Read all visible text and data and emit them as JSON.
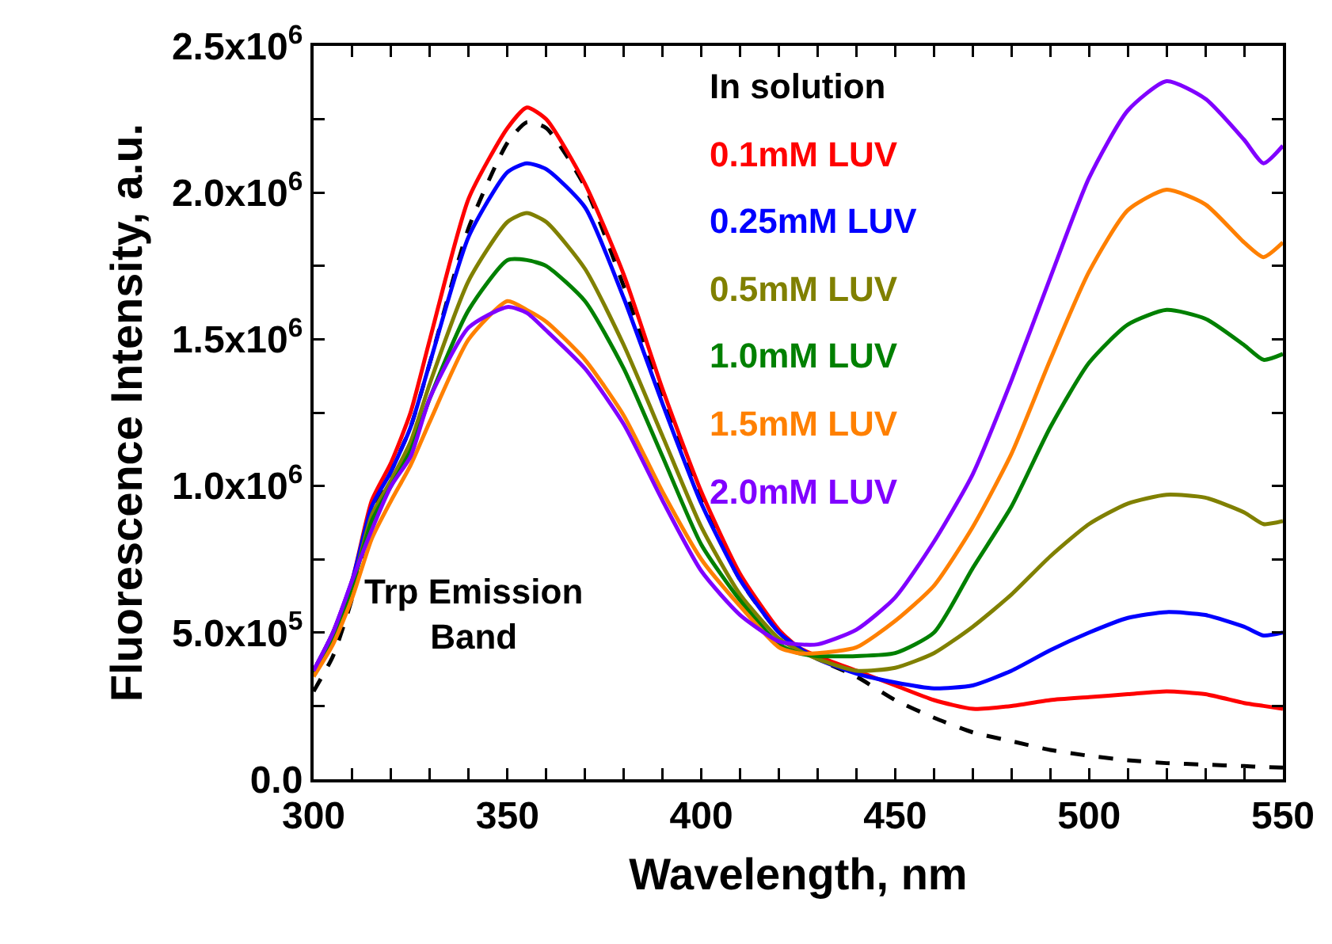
{
  "chart_data": {
    "type": "line",
    "xlabel": "Wavelength, nm",
    "ylabel": "Fluorescence Intensity, a.u.",
    "x": [
      300,
      305,
      310,
      315,
      320,
      325,
      330,
      340,
      350,
      355,
      360,
      370,
      380,
      390,
      400,
      410,
      420,
      425,
      430,
      440,
      450,
      460,
      470,
      480,
      490,
      500,
      510,
      520,
      530,
      540,
      545,
      550
    ],
    "series": [
      {
        "name": "In solution",
        "color": "#000000",
        "line_style": "dashed",
        "values": [
          300000,
          420000,
          620000,
          900000,
          1050000,
          1200000,
          1420000,
          1880000,
          2170000,
          2240000,
          2220000,
          2020000,
          1680000,
          1300000,
          950000,
          680000,
          500000,
          450000,
          410000,
          350000,
          270000,
          210000,
          160000,
          130000,
          100000,
          80000,
          65000,
          55000,
          50000,
          45000,
          42000,
          40000
        ]
      },
      {
        "name": "0.1mM LUV",
        "color": "#ff0000",
        "values": [
          370000,
          500000,
          680000,
          950000,
          1080000,
          1250000,
          1500000,
          1980000,
          2220000,
          2290000,
          2250000,
          2030000,
          1720000,
          1330000,
          980000,
          700000,
          510000,
          450000,
          420000,
          370000,
          320000,
          270000,
          240000,
          250000,
          270000,
          280000,
          290000,
          300000,
          290000,
          260000,
          250000,
          240000
        ]
      },
      {
        "name": "0.25mM LUV",
        "color": "#0000ff",
        "values": [
          370000,
          500000,
          680000,
          930000,
          1050000,
          1200000,
          1420000,
          1850000,
          2070000,
          2100000,
          2080000,
          1950000,
          1640000,
          1280000,
          940000,
          680000,
          500000,
          450000,
          410000,
          360000,
          330000,
          310000,
          320000,
          370000,
          440000,
          500000,
          550000,
          570000,
          560000,
          520000,
          490000,
          500000
        ]
      },
      {
        "name": "0.5mM LUV",
        "color": "#808000",
        "values": [
          360000,
          480000,
          660000,
          900000,
          1020000,
          1150000,
          1350000,
          1700000,
          1900000,
          1930000,
          1900000,
          1740000,
          1480000,
          1170000,
          860000,
          630000,
          480000,
          440000,
          410000,
          370000,
          380000,
          430000,
          520000,
          630000,
          760000,
          870000,
          940000,
          970000,
          960000,
          910000,
          870000,
          880000
        ]
      },
      {
        "name": "1.0mM LUV",
        "color": "#008000",
        "values": [
          360000,
          480000,
          660000,
          880000,
          1000000,
          1120000,
          1300000,
          1600000,
          1770000,
          1770000,
          1750000,
          1630000,
          1400000,
          1100000,
          800000,
          610000,
          460000,
          430000,
          420000,
          420000,
          430000,
          500000,
          720000,
          930000,
          1200000,
          1420000,
          1550000,
          1600000,
          1570000,
          1480000,
          1430000,
          1450000
        ]
      },
      {
        "name": "1.5mM LUV",
        "color": "#ff8000",
        "values": [
          350000,
          460000,
          620000,
          820000,
          950000,
          1070000,
          1220000,
          1500000,
          1630000,
          1600000,
          1560000,
          1430000,
          1240000,
          980000,
          750000,
          590000,
          450000,
          430000,
          430000,
          450000,
          540000,
          660000,
          860000,
          1110000,
          1430000,
          1730000,
          1940000,
          2010000,
          1960000,
          1830000,
          1780000,
          1830000
        ]
      },
      {
        "name": "2.0mM LUV",
        "color": "#8000ff",
        "values": [
          370000,
          500000,
          680000,
          850000,
          1000000,
          1100000,
          1300000,
          1540000,
          1610000,
          1590000,
          1530000,
          1400000,
          1210000,
          950000,
          710000,
          560000,
          470000,
          460000,
          460000,
          510000,
          620000,
          810000,
          1040000,
          1360000,
          1710000,
          2050000,
          2280000,
          2380000,
          2320000,
          2180000,
          2100000,
          2160000
        ]
      }
    ],
    "xlim": [
      300,
      550
    ],
    "xticks": [
      300,
      {
        "value": 310,
        "label": null
      },
      {
        "value": 320,
        "label": null
      },
      {
        "value": 330,
        "label": null
      },
      {
        "value": 340,
        "label": null
      },
      350,
      {
        "value": 360,
        "label": null
      },
      {
        "value": 370,
        "label": null
      },
      {
        "value": 380,
        "label": null
      },
      {
        "value": 390,
        "label": null
      },
      400,
      {
        "value": 410,
        "label": null
      },
      {
        "value": 420,
        "label": null
      },
      {
        "value": 430,
        "label": null
      },
      {
        "value": 440,
        "label": null
      },
      450,
      {
        "value": 460,
        "label": null
      },
      {
        "value": 470,
        "label": null
      },
      {
        "value": 480,
        "label": null
      },
      {
        "value": 490,
        "label": null
      },
      500,
      {
        "value": 510,
        "label": null
      },
      {
        "value": 520,
        "label": null
      },
      {
        "value": 530,
        "label": null
      },
      {
        "value": 540,
        "label": null
      },
      550
    ],
    "ylim": [
      0,
      2500000
    ],
    "yticks": [
      {
        "value": 0,
        "label": "0.0"
      },
      {
        "value": 250000,
        "label": null
      },
      {
        "value": 500000,
        "label": "5.0x10$^{5}$"
      },
      {
        "value": 750000,
        "label": null
      },
      {
        "value": 1000000,
        "label": "1.0x10$^{6}$"
      },
      {
        "value": 1250000,
        "label": null
      },
      {
        "value": 1500000,
        "label": "1.5x10$^{6}$"
      },
      {
        "value": 1750000,
        "label": null
      },
      {
        "value": 2000000,
        "label": "2.0x10$^{6}$"
      },
      {
        "value": 2250000,
        "label": null
      },
      {
        "value": 2500000,
        "label": "2.5x10$^{6}$"
      }
    ],
    "annotations": [
      "Trp Emission Band"
    ],
    "grid": false,
    "legend": "top",
    "marker": "none",
    "line_style": "solid"
  }
}
